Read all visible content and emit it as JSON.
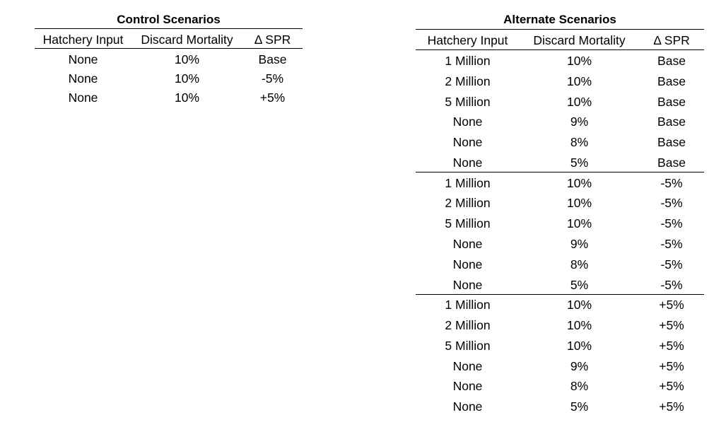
{
  "control": {
    "title": "Control Scenarios",
    "headers": [
      "Hatchery Input",
      "Discard Mortality",
      "Δ SPR"
    ],
    "rows": [
      [
        "None",
        "10%",
        "Base"
      ],
      [
        "None",
        "10%",
        "-5%"
      ],
      [
        "None",
        "10%",
        "+5%"
      ]
    ]
  },
  "alternate": {
    "title": "Alternate Scenarios",
    "headers": [
      "Hatchery Input",
      "Discard Mortality",
      "Δ SPR"
    ],
    "groups": [
      [
        [
          "1 Million",
          "10%",
          "Base"
        ],
        [
          "2 Million",
          "10%",
          "Base"
        ],
        [
          "5 Million",
          "10%",
          "Base"
        ],
        [
          "None",
          "9%",
          "Base"
        ],
        [
          "None",
          "8%",
          "Base"
        ],
        [
          "None",
          "5%",
          "Base"
        ]
      ],
      [
        [
          "1 Million",
          "10%",
          "-5%"
        ],
        [
          "2 Million",
          "10%",
          "-5%"
        ],
        [
          "5 Million",
          "10%",
          "-5%"
        ],
        [
          "None",
          "9%",
          "-5%"
        ],
        [
          "None",
          "8%",
          "-5%"
        ],
        [
          "None",
          "5%",
          "-5%"
        ]
      ],
      [
        [
          "1 Million",
          "10%",
          "+5%"
        ],
        [
          "2 Million",
          "10%",
          "+5%"
        ],
        [
          "5 Million",
          "10%",
          "+5%"
        ],
        [
          "None",
          "9%",
          "+5%"
        ],
        [
          "None",
          "8%",
          "+5%"
        ],
        [
          "None",
          "5%",
          "+5%"
        ]
      ]
    ]
  }
}
